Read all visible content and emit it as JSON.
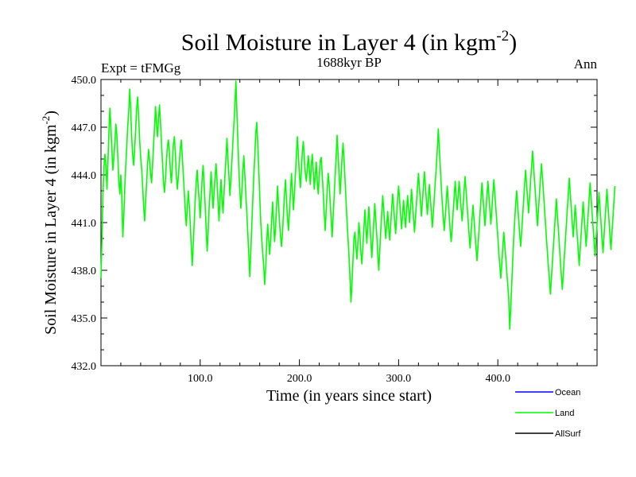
{
  "chart_data": {
    "type": "line",
    "title_main": "Soil Moisture in Layer 4 (in kgm",
    "title_sup": "-2",
    "title_close": ")",
    "subtitle_left": "Expt = tFMGg",
    "subtitle_center": "1688kyr BP",
    "subtitle_right": "Ann",
    "xlabel": "Time (in years since start)",
    "ylabel_main": "Soil Moisture in Layer 4 (in kgm",
    "ylabel_sup": "-2",
    "ylabel_close": ")",
    "xlim": [
      0,
      500
    ],
    "ylim": [
      432.0,
      450.0
    ],
    "xticks": [
      100,
      200,
      300,
      400
    ],
    "xtick_labels": [
      "100.0",
      "200.0",
      "300.0",
      "400.0"
    ],
    "yticks": [
      432,
      435,
      438,
      441,
      444,
      447,
      450
    ],
    "ytick_labels": [
      "432.0",
      "435.0",
      "438.0",
      "441.0",
      "444.0",
      "447.0",
      "450.0"
    ],
    "legend": [
      {
        "name": "Ocean",
        "color": "#0000ff"
      },
      {
        "name": "Land",
        "color": "#00ff00"
      },
      {
        "name": "AllSurf",
        "color": "#000000"
      }
    ],
    "series": [
      {
        "name": "Land",
        "color": "#00ff00",
        "x_start": 0,
        "x_step": 1,
        "values": [
          437.5,
          440.0,
          442.8,
          444.5,
          445.3,
          444.6,
          443.1,
          444.8,
          446.7,
          448.2,
          447.0,
          445.6,
          444.3,
          445.1,
          446.0,
          447.2,
          446.5,
          445.1,
          443.6,
          442.8,
          444.0,
          442.7,
          440.1,
          441.4,
          443.2,
          444.6,
          445.8,
          447.1,
          448.0,
          449.4,
          448.1,
          446.3,
          445.2,
          444.6,
          445.7,
          446.9,
          448.2,
          448.9,
          447.6,
          446.2,
          445.1,
          444.4,
          443.3,
          442.0,
          441.1,
          442.3,
          443.5,
          444.7,
          445.6,
          444.9,
          444.1,
          443.5,
          444.6,
          445.9,
          447.0,
          448.3,
          447.2,
          446.4,
          447.5,
          448.4,
          447.3,
          446.0,
          444.8,
          443.6,
          442.9,
          443.7,
          444.9,
          445.8,
          446.2,
          445.4,
          444.2,
          443.5,
          444.7,
          445.9,
          446.4,
          445.3,
          444.0,
          443.1,
          443.9,
          444.8,
          445.7,
          446.2,
          445.1,
          444.0,
          442.9,
          441.7,
          440.8,
          441.9,
          443.0,
          442.1,
          440.9,
          439.5,
          438.3,
          439.6,
          441.0,
          442.4,
          443.6,
          444.3,
          443.2,
          442.4,
          441.3,
          442.5,
          443.8,
          444.6,
          443.4,
          442.1,
          440.6,
          439.2,
          440.4,
          441.9,
          443.0,
          444.2,
          443.0,
          441.9,
          442.8,
          443.9,
          444.7,
          443.6,
          442.3,
          441.1,
          442.6,
          443.7,
          442.5,
          441.6,
          442.8,
          444.0,
          445.1,
          446.3,
          445.0,
          443.9,
          442.7,
          443.8,
          444.9,
          446.1,
          447.2,
          448.4,
          449.9,
          448.0,
          446.1,
          444.3,
          443.0,
          441.9,
          443.0,
          444.3,
          445.2,
          444.0,
          442.8,
          441.6,
          440.3,
          439.0,
          437.6,
          439.1,
          440.8,
          442.4,
          443.9,
          445.1,
          446.6,
          447.3,
          446.0,
          444.4,
          442.7,
          441.1,
          440.0,
          439.1,
          438.3,
          437.1,
          438.2,
          439.6,
          440.9,
          440.0,
          439.0,
          439.9,
          441.1,
          442.3,
          441.0,
          439.8,
          440.7,
          442.0,
          443.3,
          442.1,
          441.0,
          440.1,
          439.5,
          440.4,
          441.6,
          442.8,
          443.7,
          442.4,
          441.3,
          440.5,
          441.7,
          442.9,
          444.1,
          443.0,
          441.8,
          442.9,
          444.0,
          445.3,
          446.4,
          445.2,
          444.0,
          443.2,
          444.3,
          445.5,
          446.1,
          445.0,
          444.1,
          443.6,
          444.5,
          445.2,
          444.3,
          443.4,
          444.6,
          445.3,
          444.2,
          443.1,
          444.0,
          444.8,
          443.6,
          442.8,
          443.9,
          444.9,
          445.1,
          444.0,
          442.9,
          441.6,
          440.5,
          441.8,
          443.0,
          444.1,
          443.4,
          442.3,
          441.2,
          440.1,
          441.4,
          442.6,
          443.9,
          445.1,
          446.5,
          445.3,
          444.0,
          442.8,
          443.9,
          445.1,
          446.0,
          445.0,
          443.7,
          442.4,
          441.1,
          440.0,
          438.9,
          437.5,
          436.0,
          437.2,
          438.6,
          440.0,
          440.4,
          439.5,
          438.7,
          439.8,
          441.0,
          440.2,
          439.1,
          438.4,
          439.6,
          440.6,
          441.8,
          440.7,
          439.7,
          440.9,
          442.0,
          441.0,
          439.9,
          438.8,
          439.9,
          441.1,
          442.2,
          441.2,
          440.2,
          439.0,
          438.0,
          439.2,
          440.5,
          441.6,
          442.7,
          441.8,
          440.9,
          440.0,
          440.8,
          441.7,
          440.7,
          439.9,
          440.8,
          441.9,
          442.8,
          442.0,
          441.1,
          440.3,
          441.4,
          442.5,
          443.3,
          442.4,
          441.5,
          440.6,
          441.5,
          442.4,
          441.5,
          440.7,
          441.6,
          442.7,
          441.9,
          441.0,
          442.0,
          443.1,
          442.2,
          441.3,
          440.4,
          441.3,
          442.2,
          443.2,
          444.1,
          443.2,
          442.3,
          441.4,
          442.3,
          443.3,
          444.2,
          443.3,
          442.4,
          441.5,
          442.5,
          443.4,
          442.5,
          441.6,
          440.7,
          441.6,
          442.6,
          443.6,
          444.5,
          445.6,
          446.9,
          445.7,
          444.5,
          443.3,
          442.2,
          441.3,
          440.5,
          441.4,
          442.3,
          443.3,
          442.4,
          441.4,
          440.5,
          439.8,
          440.7,
          441.7,
          442.6,
          443.6,
          442.7,
          441.8,
          442.7,
          443.6,
          442.8,
          441.9,
          441.1,
          442.0,
          443.0,
          443.9,
          443.0,
          442.1,
          441.2,
          440.3,
          439.4,
          440.3,
          441.2,
          442.1,
          441.2,
          440.3,
          439.4,
          438.6,
          439.5,
          440.5,
          441.5,
          442.5,
          443.5,
          442.6,
          441.7,
          440.8,
          441.7,
          442.7,
          443.6,
          442.7,
          441.8,
          440.9,
          441.8,
          442.8,
          443.7,
          442.8,
          441.9,
          441.0,
          440.1,
          439.1,
          438.3,
          437.5,
          438.4,
          439.4,
          440.4,
          439.6,
          438.8,
          437.9,
          437.1,
          436.2,
          434.3,
          435.6,
          437.1,
          438.6,
          440.0,
          441.1,
          442.2,
          443.0,
          442.1,
          441.2,
          440.3,
          439.5,
          440.4,
          441.4,
          442.4,
          443.4,
          444.3,
          443.4,
          442.5,
          441.6,
          442.6,
          443.6,
          444.5,
          445.5,
          444.6,
          443.6,
          442.7,
          441.7,
          440.8,
          441.8,
          442.8,
          443.8,
          444.7,
          443.8,
          442.9,
          441.9,
          441.0,
          440.0,
          439.1,
          438.2,
          437.4,
          436.5,
          437.5,
          438.5,
          439.5,
          440.5,
          441.5,
          442.5,
          441.5,
          440.6,
          439.6,
          438.6,
          437.7,
          436.8,
          437.8,
          438.8,
          439.8,
          440.8,
          441.8,
          442.8,
          443.8,
          442.9,
          441.9,
          441.0,
          440.1,
          441.1,
          442.1,
          441.2,
          440.2,
          439.3,
          438.3,
          439.3,
          440.3,
          441.3,
          442.3,
          441.4,
          440.5,
          439.5,
          440.5,
          441.5,
          442.5,
          443.5,
          442.6,
          441.6,
          440.7,
          439.8,
          438.9,
          439.9,
          440.9,
          441.9,
          442.9,
          441.9,
          441.0,
          440.0,
          439.1,
          440.1,
          441.1,
          442.1,
          443.1,
          442.1,
          441.2,
          440.2,
          439.3,
          440.3,
          441.3,
          442.3,
          443.3
        ]
      },
      {
        "name": "Ocean",
        "color": "#0000ff",
        "values": []
      },
      {
        "name": "AllSurf",
        "color": "#000000",
        "values": []
      }
    ]
  }
}
